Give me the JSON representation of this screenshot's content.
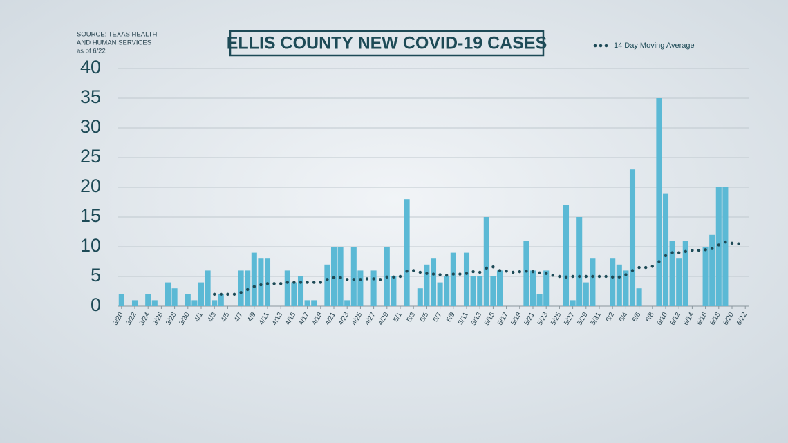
{
  "chart_data": {
    "type": "bar",
    "title": "ELLIS COUNTY NEW COVID-19 CASES",
    "source": [
      "SOURCE: TEXAS HEALTH",
      "AND HUMAN SERVICES",
      "as of 6/22"
    ],
    "categories": [
      "3/20",
      null,
      "3/22",
      null,
      "3/24",
      null,
      "3/26",
      null,
      "3/28",
      null,
      "3/30",
      null,
      "4/1",
      null,
      "4/3",
      null,
      "4/5",
      null,
      "4/7",
      null,
      "4/9",
      null,
      "4/11",
      null,
      "4/13",
      null,
      "4/15",
      null,
      "4/17",
      null,
      "4/19",
      null,
      "4/21",
      null,
      "4/23",
      null,
      "4/25",
      null,
      "4/27",
      null,
      "4/29",
      null,
      "5/1",
      null,
      "5/3",
      null,
      "5/5",
      null,
      "5/7",
      null,
      "5/9",
      null,
      "5/11",
      null,
      "5/13",
      null,
      "5/15",
      null,
      "5/17",
      null,
      "5/19",
      null,
      "5/21",
      null,
      "5/23",
      null,
      "5/25",
      null,
      "5/27",
      null,
      "5/29",
      null,
      "5/31",
      null,
      "6/2",
      null,
      "6/4",
      null,
      "6/6",
      null,
      "6/8",
      null,
      "6/10",
      null,
      "6/12",
      null,
      "6/14",
      null,
      "6/16",
      null,
      "6/18",
      null,
      "6/20",
      null,
      "6/22"
    ],
    "series": [
      {
        "type": "bar",
        "color": "#5bb9d5",
        "values": [
          2,
          0,
          1,
          0,
          2,
          1,
          0,
          4,
          3,
          0,
          2,
          1,
          4,
          6,
          1,
          2,
          0,
          0,
          6,
          6,
          9,
          8,
          8,
          0,
          0,
          6,
          4,
          5,
          1,
          1,
          0,
          7,
          10,
          10,
          1,
          10,
          6,
          0,
          6,
          0,
          10,
          5,
          0,
          18,
          0,
          3,
          7,
          8,
          4,
          5,
          9,
          0,
          9,
          5,
          5,
          15,
          5,
          6,
          0,
          0,
          0,
          11,
          6,
          2,
          6,
          0,
          0,
          17,
          1,
          15,
          4,
          8,
          0,
          0,
          8,
          7,
          6,
          23,
          3,
          0,
          0,
          35,
          19,
          11,
          8,
          11,
          0,
          0,
          10,
          12,
          20,
          20,
          0,
          0,
          0
        ]
      },
      {
        "type": "line",
        "name": "14 Day Moving Average",
        "color": "#1d4a56",
        "values": [
          null,
          null,
          null,
          null,
          null,
          null,
          null,
          null,
          null,
          null,
          null,
          null,
          null,
          null,
          2,
          2,
          2,
          2,
          2.3,
          2.8,
          3.3,
          3.6,
          3.8,
          3.8,
          3.8,
          4,
          4,
          4,
          4,
          4,
          4,
          4.5,
          4.8,
          4.8,
          4.5,
          4.5,
          4.5,
          4.6,
          4.6,
          4.5,
          4.9,
          4.9,
          5,
          5.9,
          6,
          5.7,
          5.5,
          5.4,
          5.3,
          5.2,
          5.4,
          5.4,
          5.5,
          5.8,
          5.7,
          6.4,
          6.6,
          6,
          5.9,
          5.7,
          5.8,
          5.9,
          5.8,
          5.6,
          5.5,
          5.2,
          5,
          4.9,
          5,
          5,
          5,
          5,
          5,
          5,
          4.9,
          4.9,
          5.3,
          6,
          6.5,
          6.5,
          6.7,
          7.5,
          8.5,
          9,
          9,
          9.2,
          9.4,
          9.4,
          9.5,
          9.7,
          10.3,
          10.8,
          10.6,
          10.5,
          null
        ]
      }
    ],
    "ylim": [
      0,
      40
    ],
    "yticks": [
      0,
      5,
      10,
      15,
      20,
      25,
      30,
      35,
      40
    ],
    "grid": true
  }
}
